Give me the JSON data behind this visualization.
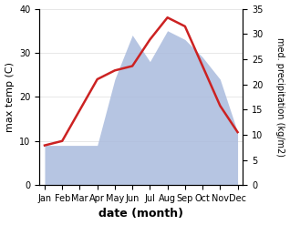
{
  "months": [
    "Jan",
    "Feb",
    "Mar",
    "Apr",
    "May",
    "Jun",
    "Jul",
    "Aug",
    "Sep",
    "Oct",
    "Nov",
    "Dec"
  ],
  "temperature": [
    9,
    10,
    17,
    24,
    26,
    27,
    33,
    38,
    36,
    27,
    18,
    12
  ],
  "precipitation_left": [
    9,
    9,
    9,
    9,
    24,
    34,
    28,
    35,
    33,
    29,
    24,
    12
  ],
  "temp_color": "#cc2222",
  "precip_color": "#aabbdd",
  "temp_ylim": [
    0,
    40
  ],
  "precip_ylim": [
    0,
    35
  ],
  "temp_yticks": [
    0,
    10,
    20,
    30,
    40
  ],
  "precip_yticks": [
    0,
    5,
    10,
    15,
    20,
    25,
    30,
    35
  ],
  "ylabel_left": "max temp (C)",
  "ylabel_right": "med. precipitation (kg/m2)",
  "xlabel": "date (month)",
  "bg_color": "#ffffff",
  "label_fontsize": 8,
  "tick_fontsize": 7
}
